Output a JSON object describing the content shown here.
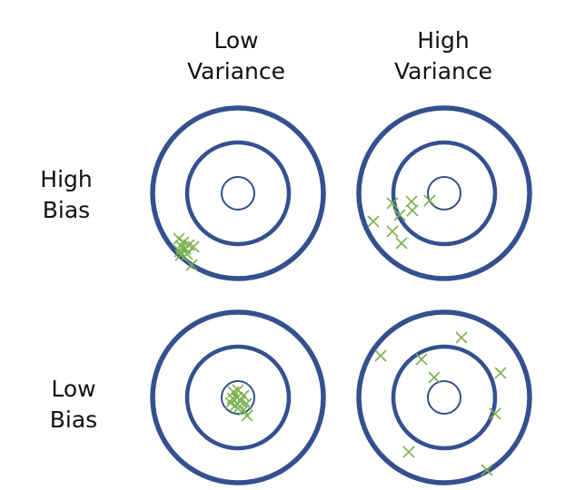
{
  "column_headers": [
    {
      "line1": "Low",
      "line2": "Variance"
    },
    {
      "line1": "High",
      "line2": "Variance"
    }
  ],
  "row_headers": [
    {
      "line1": "High",
      "line2": "Bias"
    },
    {
      "line1": "Low",
      "line2": "Bias"
    }
  ],
  "colors": {
    "ring": "#34508f",
    "marker": "#7cb151",
    "text": "#111111",
    "background": "#ffffff"
  },
  "marker_glyph": "x-mark"
}
